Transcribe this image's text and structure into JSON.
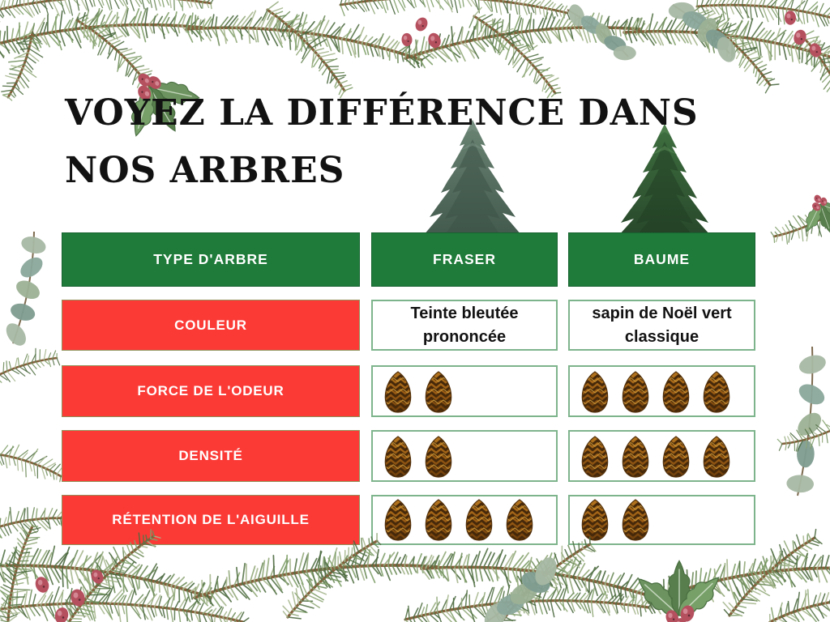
{
  "title": {
    "line1": "VOYEZ LA DIFFÉRENCE DANS",
    "line2": "NOS ARBRES"
  },
  "columns": {
    "type": "TYPE D'ARBRE",
    "fraser": "FRASER",
    "baume": "BAUME"
  },
  "rows": [
    {
      "label": "COULEUR",
      "kind": "text",
      "fraser": "Teinte bleutée prononcée",
      "baume": "sapin de Noël vert classique"
    },
    {
      "label": "FORCE DE L'ODEUR",
      "kind": "rating",
      "fraser": 2,
      "baume": 4
    },
    {
      "label": "DENSITÉ",
      "kind": "rating",
      "fraser": 2,
      "baume": 4
    },
    {
      "label": "RÉTENTION DE L'AIGUILLE",
      "kind": "rating",
      "fraser": 4,
      "baume": 2
    }
  ],
  "rating": {
    "icon": "pinecone-icon",
    "max": 4
  },
  "images": {
    "fraser": "fraser-fir-tree-photo",
    "baume": "balsam-fir-tree-photo",
    "border": "watercolor-fir-garland-with-holly-and-berries"
  },
  "colors": {
    "header-green": "#1e7b3a",
    "row-red": "#fb3a36",
    "cell-border-green": "#7eb48c",
    "red-cell-border": "#93915a",
    "text-dark": "#121212",
    "pinecone-brown": "#9a5c14",
    "berry-red": "#b5505f",
    "needle-green": "#6f8d5b"
  }
}
